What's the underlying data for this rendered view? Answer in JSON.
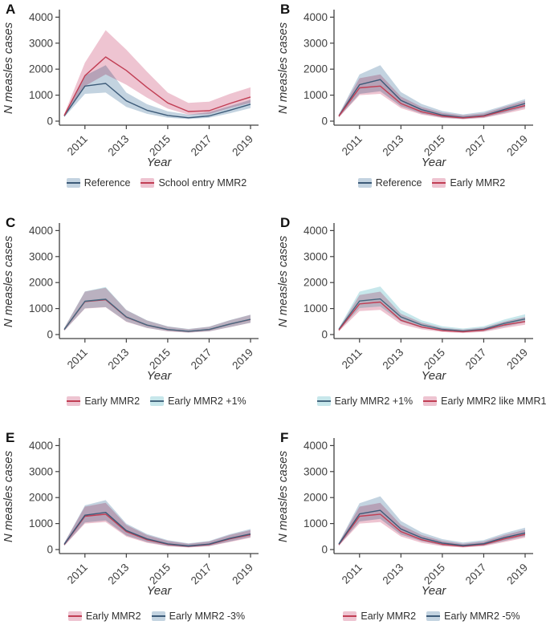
{
  "axes": {
    "ylabel": "N measles cases",
    "xlabel": "Year",
    "years": [
      2010,
      2011,
      2012,
      2013,
      2014,
      2015,
      2016,
      2017,
      2018,
      2019
    ],
    "x_ticks": [
      2011,
      2013,
      2015,
      2017,
      2019
    ],
    "x_tick_labels": [
      "2011",
      "2013",
      "2015",
      "2017",
      "2019"
    ],
    "y_ticks": [
      0,
      1000,
      2000,
      3000,
      4000
    ],
    "y_tick_labels": [
      "0",
      "1000",
      "2000",
      "3000",
      "4000"
    ],
    "ylim": [
      0,
      4000
    ],
    "grid": "off",
    "legend_position": "bottom"
  },
  "colors": {
    "blue": {
      "line": "#3c5a78",
      "band": "#c3d3e0"
    },
    "red": {
      "line": "#c13e54",
      "band": "#eec4d1"
    },
    "teal": {
      "line": "#45677f",
      "band": "#c7e7eb"
    }
  },
  "chart_data": [
    {
      "type": "line",
      "letter": "A",
      "xlabel": "Year",
      "ylabel": "N measles cases",
      "x": [
        2010,
        2011,
        2012,
        2013,
        2014,
        2015,
        2016,
        2017,
        2018,
        2019
      ],
      "ylim": [
        0,
        4000
      ],
      "series": [
        {
          "name": "Reference",
          "color": "blue",
          "values": [
            200,
            1350,
            1450,
            780,
            420,
            220,
            130,
            200,
            420,
            650
          ],
          "lower": [
            150,
            1050,
            1100,
            550,
            280,
            130,
            80,
            130,
            300,
            500
          ],
          "upper": [
            260,
            1750,
            2150,
            1100,
            650,
            380,
            250,
            350,
            580,
            820
          ]
        },
        {
          "name": "School entry MMR2",
          "color": "red",
          "values": [
            215,
            1750,
            2470,
            1950,
            1300,
            700,
            370,
            400,
            680,
            930
          ],
          "lower": [
            160,
            1350,
            1800,
            1400,
            900,
            480,
            250,
            270,
            500,
            700
          ],
          "upper": [
            270,
            2250,
            3500,
            2750,
            1900,
            1100,
            700,
            750,
            1050,
            1300
          ]
        }
      ]
    },
    {
      "type": "line",
      "letter": "B",
      "xlabel": "Year",
      "ylabel": "N measles cases",
      "x": [
        2010,
        2011,
        2012,
        2013,
        2014,
        2015,
        2016,
        2017,
        2018,
        2019
      ],
      "ylim": [
        0,
        4000
      ],
      "series": [
        {
          "name": "Reference",
          "color": "blue",
          "values": [
            200,
            1400,
            1600,
            800,
            440,
            230,
            140,
            210,
            450,
            680
          ],
          "lower": [
            150,
            1050,
            1150,
            570,
            290,
            140,
            85,
            140,
            320,
            530
          ],
          "upper": [
            260,
            1800,
            2150,
            1120,
            660,
            390,
            260,
            360,
            600,
            850
          ]
        },
        {
          "name": "Early MMR2",
          "color": "red",
          "values": [
            190,
            1280,
            1350,
            680,
            360,
            190,
            120,
            190,
            400,
            600
          ],
          "lower": [
            140,
            1000,
            1050,
            500,
            250,
            120,
            75,
            120,
            280,
            460
          ],
          "upper": [
            250,
            1650,
            1800,
            950,
            550,
            320,
            220,
            300,
            550,
            780
          ]
        }
      ]
    },
    {
      "type": "line",
      "letter": "C",
      "xlabel": "Year",
      "ylabel": "N measles cases",
      "x": [
        2010,
        2011,
        2012,
        2013,
        2014,
        2015,
        2016,
        2017,
        2018,
        2019
      ],
      "ylim": [
        0,
        4000
      ],
      "series": [
        {
          "name": "Early MMR2",
          "color": "red",
          "values": [
            190,
            1270,
            1340,
            670,
            360,
            190,
            120,
            190,
            400,
            580
          ],
          "lower": [
            140,
            1000,
            1050,
            490,
            250,
            120,
            75,
            120,
            280,
            450
          ],
          "upper": [
            250,
            1650,
            1800,
            940,
            540,
            310,
            210,
            300,
            550,
            760
          ]
        },
        {
          "name": "Early MMR2 +1%",
          "color": "teal",
          "values": [
            195,
            1280,
            1360,
            680,
            365,
            195,
            125,
            195,
            405,
            585
          ],
          "lower": [
            145,
            1010,
            1060,
            500,
            255,
            125,
            78,
            123,
            285,
            455
          ],
          "upper": [
            255,
            1660,
            1830,
            950,
            545,
            315,
            215,
            305,
            555,
            765
          ]
        }
      ]
    },
    {
      "type": "line",
      "letter": "D",
      "xlabel": "Year",
      "ylabel": "N measles cases",
      "x": [
        2010,
        2011,
        2012,
        2013,
        2014,
        2015,
        2016,
        2017,
        2018,
        2019
      ],
      "ylim": [
        0,
        4000
      ],
      "series": [
        {
          "name": "Early MMR2 +1%",
          "color": "teal",
          "values": [
            200,
            1290,
            1370,
            680,
            370,
            200,
            135,
            205,
            430,
            600
          ],
          "lower": [
            150,
            1020,
            1080,
            500,
            260,
            130,
            85,
            130,
            300,
            470
          ],
          "upper": [
            260,
            1650,
            1850,
            950,
            550,
            320,
            230,
            320,
            580,
            780
          ]
        },
        {
          "name": "Early MMR2 like MMR1",
          "color": "red",
          "values": [
            170,
            1180,
            1250,
            550,
            290,
            150,
            105,
            170,
            370,
            500
          ],
          "lower": [
            120,
            900,
            950,
            400,
            200,
            95,
            60,
            100,
            250,
            380
          ],
          "upper": [
            230,
            1520,
            1650,
            800,
            460,
            260,
            190,
            270,
            500,
            680
          ]
        }
      ]
    },
    {
      "type": "line",
      "letter": "E",
      "xlabel": "Year",
      "ylabel": "N measles cases",
      "x": [
        2010,
        2011,
        2012,
        2013,
        2014,
        2015,
        2016,
        2017,
        2018,
        2019
      ],
      "ylim": [
        0,
        4000
      ],
      "series": [
        {
          "name": "Early MMR2",
          "color": "red",
          "values": [
            190,
            1280,
            1360,
            690,
            380,
            200,
            125,
            195,
            410,
            570
          ],
          "lower": [
            140,
            1000,
            1060,
            500,
            260,
            125,
            80,
            125,
            290,
            450
          ],
          "upper": [
            250,
            1650,
            1800,
            950,
            560,
            330,
            220,
            310,
            560,
            750
          ]
        },
        {
          "name": "Early MMR2 -3%",
          "color": "blue",
          "values": [
            200,
            1320,
            1430,
            730,
            410,
            220,
            140,
            210,
            430,
            600
          ],
          "lower": [
            150,
            1040,
            1120,
            540,
            290,
            140,
            90,
            140,
            310,
            480
          ],
          "upper": [
            260,
            1700,
            1900,
            1000,
            600,
            360,
            240,
            330,
            590,
            790
          ]
        }
      ]
    },
    {
      "type": "line",
      "letter": "F",
      "xlabel": "Year",
      "ylabel": "N measles cases",
      "x": [
        2010,
        2011,
        2012,
        2013,
        2014,
        2015,
        2016,
        2017,
        2018,
        2019
      ],
      "ylim": [
        0,
        4000
      ],
      "series": [
        {
          "name": "Early MMR2",
          "color": "red",
          "values": [
            190,
            1280,
            1360,
            690,
            380,
            200,
            125,
            195,
            410,
            580
          ],
          "lower": [
            140,
            1000,
            1060,
            500,
            260,
            125,
            80,
            125,
            290,
            455
          ],
          "upper": [
            250,
            1650,
            1800,
            950,
            560,
            330,
            220,
            310,
            560,
            760
          ]
        },
        {
          "name": "Early MMR2 -5%",
          "color": "blue",
          "values": [
            210,
            1370,
            1510,
            790,
            450,
            250,
            155,
            225,
            460,
            640
          ],
          "lower": [
            155,
            1080,
            1180,
            580,
            320,
            160,
            100,
            155,
            330,
            510
          ],
          "upper": [
            270,
            1780,
            2050,
            1100,
            660,
            400,
            270,
            360,
            630,
            840
          ]
        }
      ]
    }
  ]
}
